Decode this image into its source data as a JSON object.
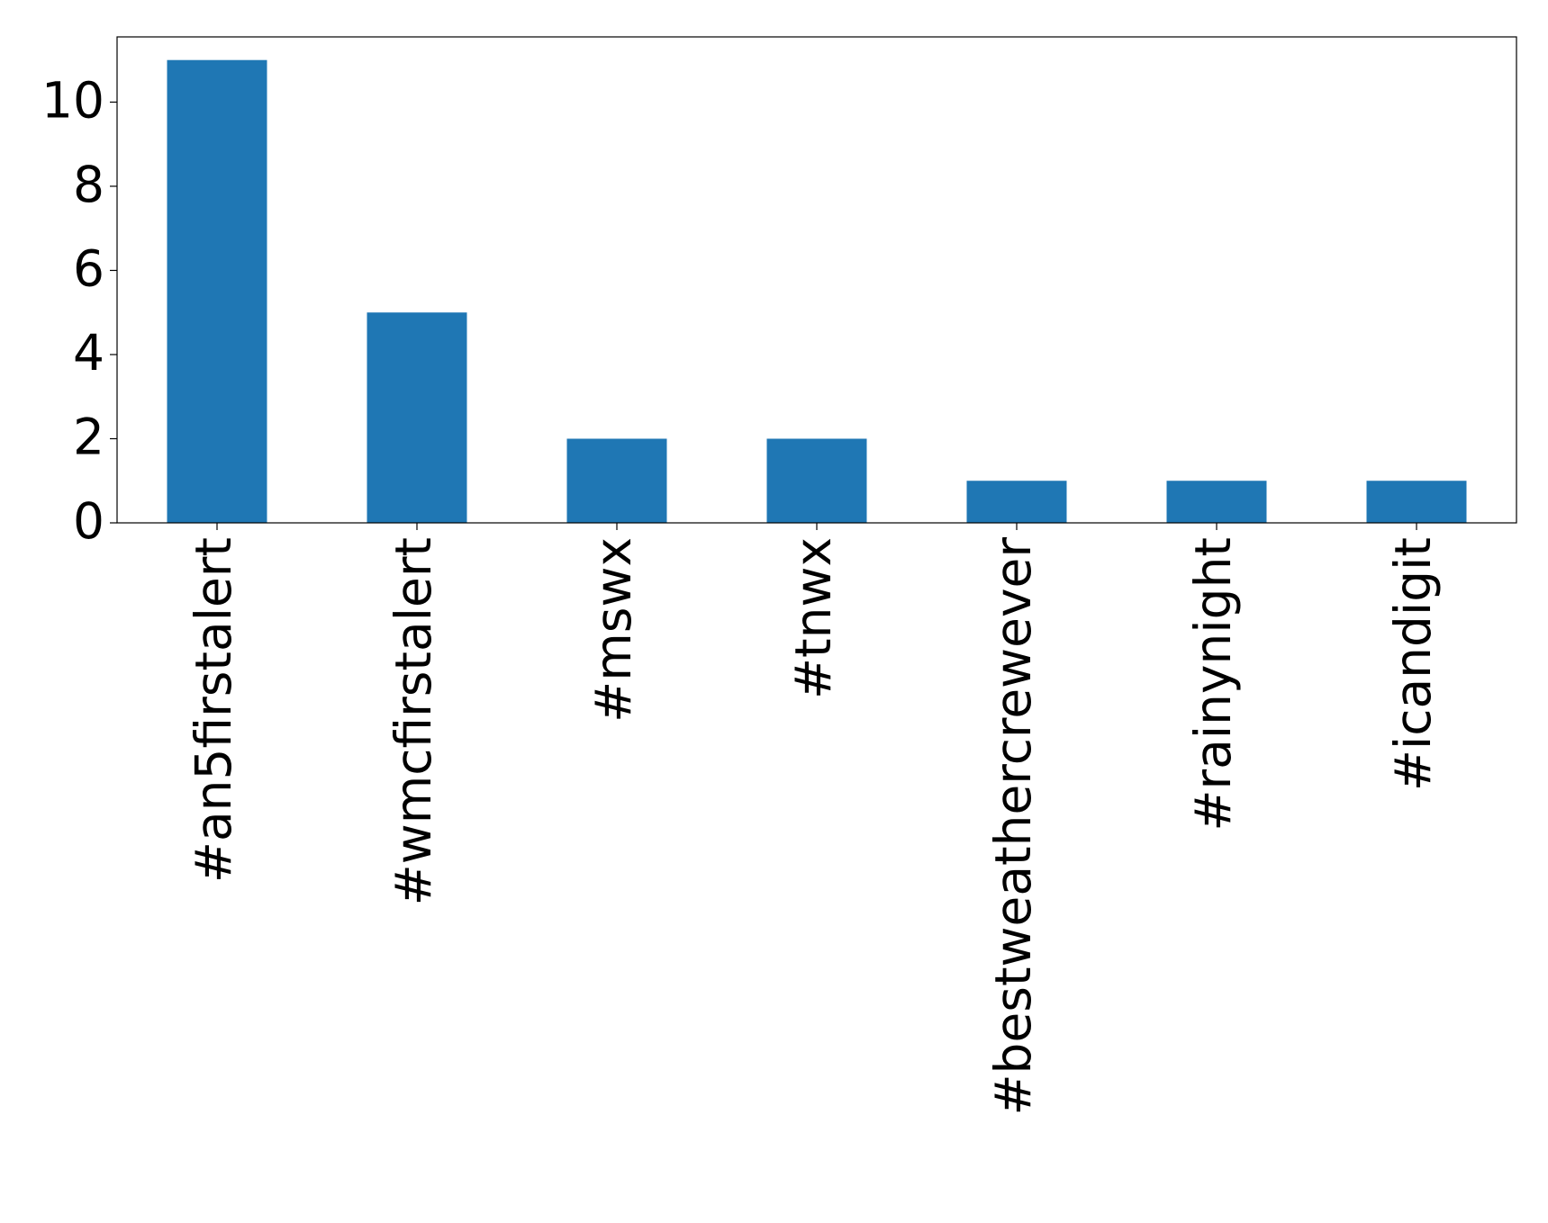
{
  "chart_data": {
    "type": "bar",
    "categories": [
      "#an5firstalert",
      "#wmcfirstalert",
      "#mswx",
      "#tnwx",
      "#bestweathercrewever",
      "#rainynight",
      "#icandigit"
    ],
    "values": [
      11,
      5,
      2,
      2,
      1,
      1,
      1
    ],
    "color": "#1f77b4",
    "ylim": [
      0,
      11.55
    ],
    "yticks": [
      0,
      2,
      4,
      6,
      8,
      10
    ],
    "grid": false
  }
}
